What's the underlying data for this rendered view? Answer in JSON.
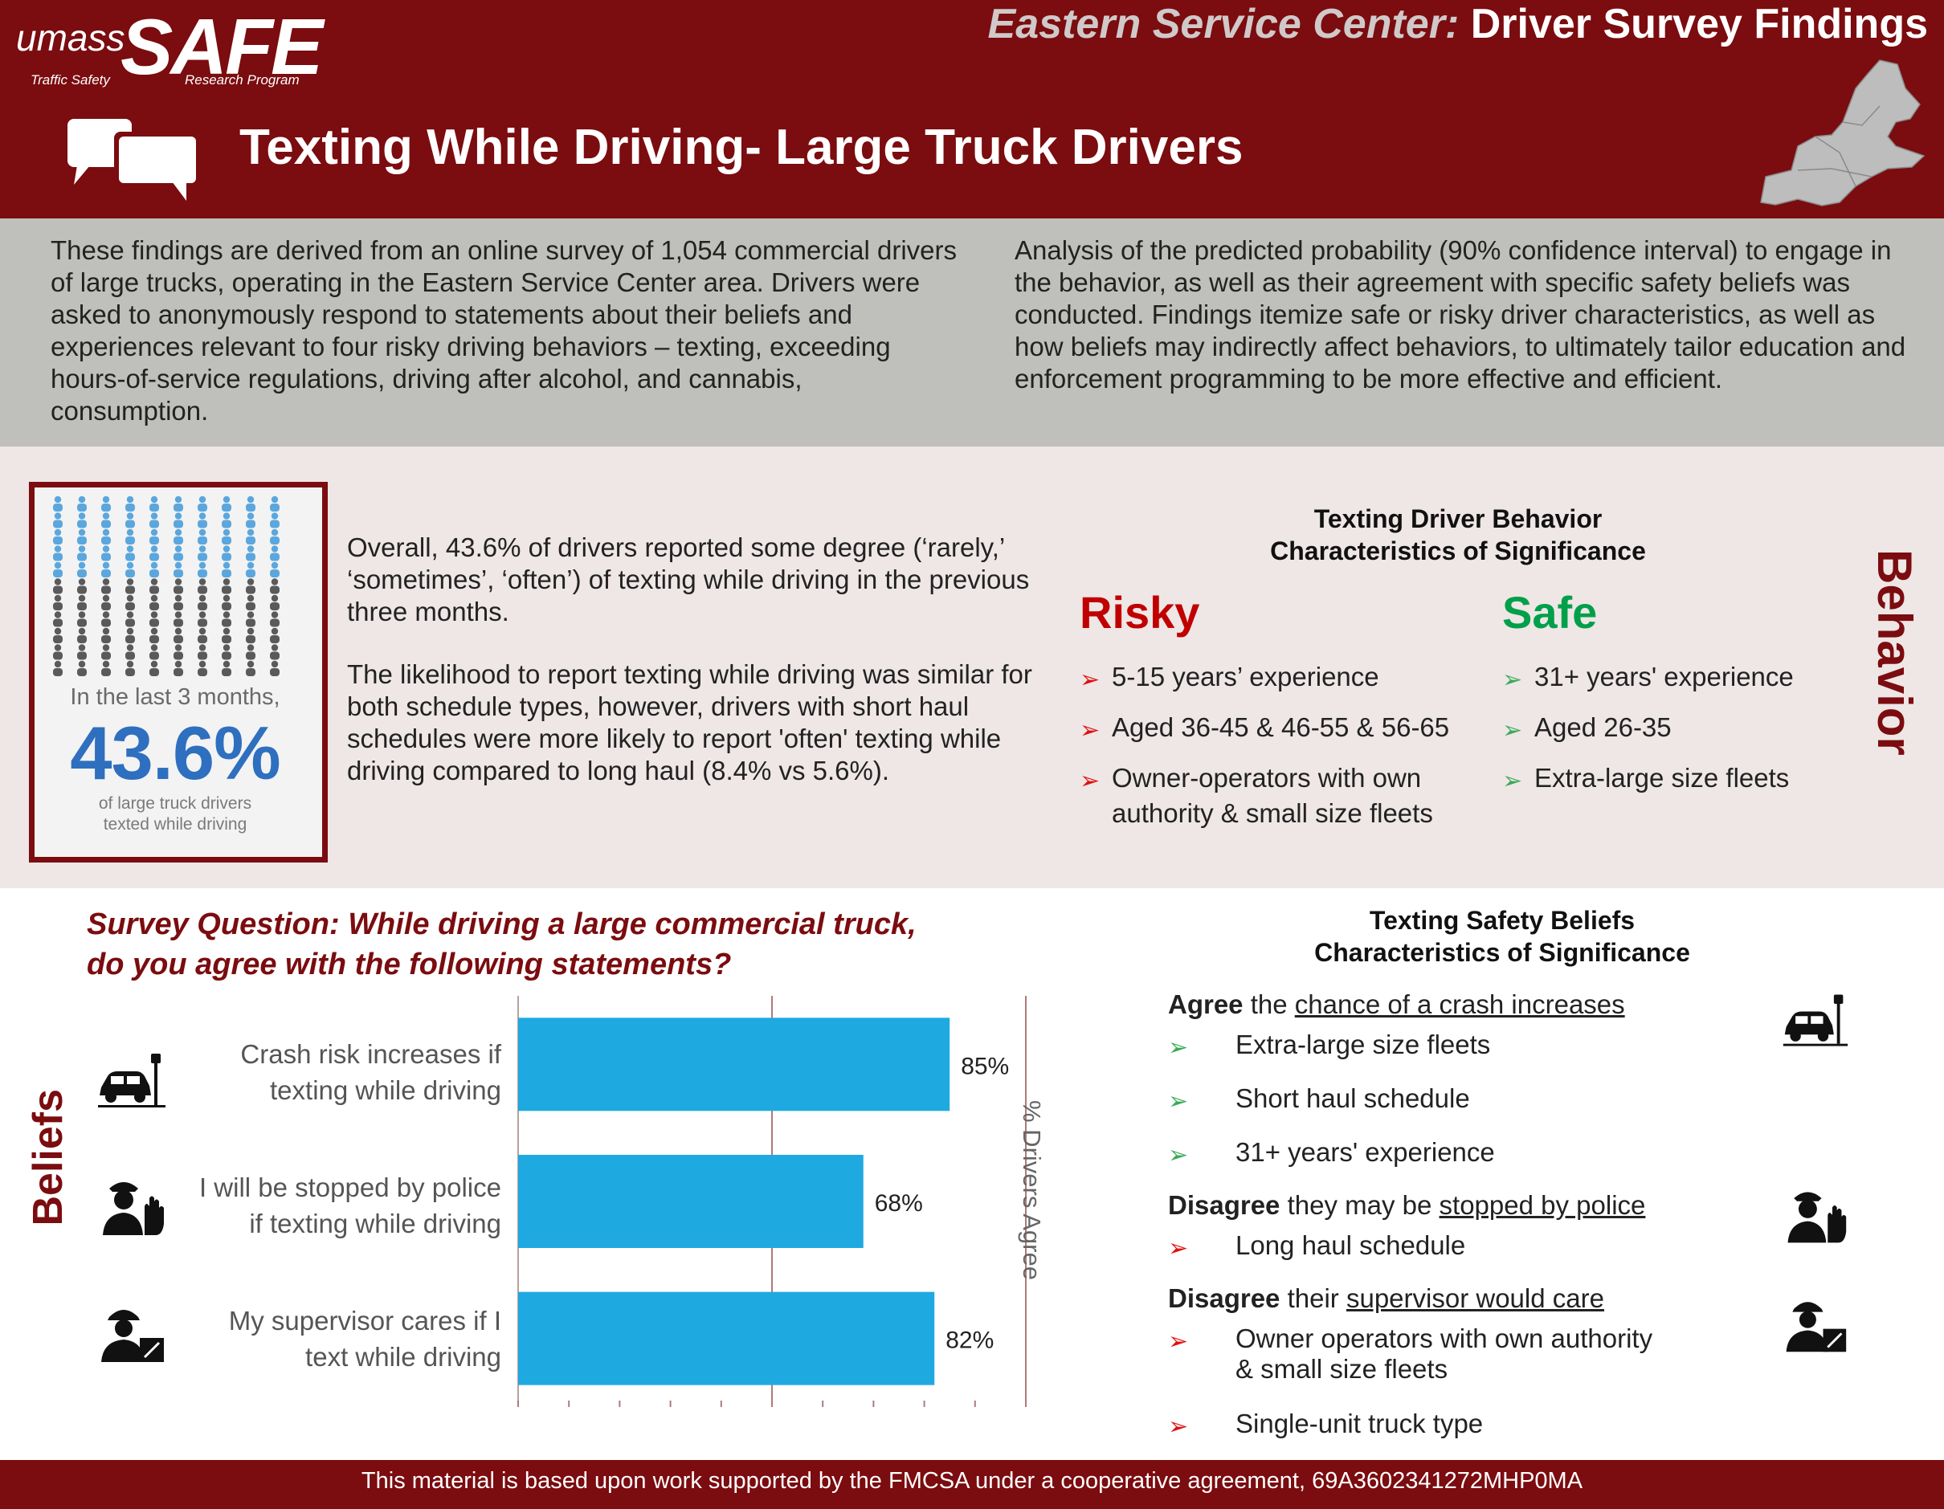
{
  "header": {
    "logo_umass": "umass",
    "logo_safe": "SAFE",
    "logo_sub_left": "Traffic Safety",
    "logo_sub_right": "Research Program",
    "center_prefix": "Eastern Service Center:",
    "center_suffix": " Driver Survey Findings",
    "title": "Texting While Driving- Large Truck Drivers",
    "brand_color": "#7b0c0f"
  },
  "intro": {
    "left": "These findings are derived from an online survey of 1,054 commercial drivers of large trucks, operating in the Eastern Service Center area. Drivers were asked to anonymously respond to statements about their beliefs and experiences relevant to four risky driving behaviors – texting, exceeding hours-of-service regulations, driving after alcohol, and cannabis, consumption.",
    "right": "Analysis of the predicted probability (90% confidence interval) to engage in the behavior, as well as their agreement with specific safety beliefs was conducted. Findings itemize safe or risky driver characteristics, as well as how beliefs may indirectly affect behaviors, to ultimately tailor education and enforcement programming to be more effective and efficient."
  },
  "stat": {
    "label_top": "In the last 3 months,",
    "value": "43.6%",
    "label_bottom_1": "of large truck drivers",
    "label_bottom_2": "texted while driving",
    "highlight_color": "#5ba7dd",
    "base_color": "#5a5a5a"
  },
  "behavior": {
    "para1": "Overall, 43.6% of drivers reported some degree (‘rarely,’ ‘sometimes’, ‘often’) of texting while driving in the previous three months.",
    "para2": "The likelihood to report texting while driving was similar for both schedule types, however, drivers with short haul schedules were more likely to report 'often' texting while driving compared to long haul (8.4% vs 5.6%).",
    "title_1": "Texting Driver Behavior",
    "title_2": "Characteristics of Significance",
    "risky_head": "Risky",
    "safe_head": "Safe",
    "risky": [
      "5-15 years’ experience",
      "Aged 36-45 & 46-55 & 56-65",
      "Owner-operators with own",
      "authority & small size fleets"
    ],
    "safe": [
      "31+ years' experience",
      "Aged 26-35",
      "Extra-large size fleets"
    ],
    "side_label": "Behavior"
  },
  "survey": {
    "question_1": "Survey Question: While driving a large commercial truck,",
    "question_2": "do you agree with the following statements?",
    "side_label": "Beliefs",
    "axis_title": "% Drivers Agree",
    "questions": [
      {
        "line1": "Crash risk increases if",
        "line2": "texting while driving",
        "value_label": "85%"
      },
      {
        "line1": "I will be stopped by police",
        "line2": "if texting while driving",
        "value_label": "68%"
      },
      {
        "line1": "My supervisor cares if I",
        "line2": "text while driving",
        "value_label": "82%"
      }
    ]
  },
  "chart_data": {
    "type": "bar",
    "orientation": "horizontal",
    "categories": [
      "Crash risk increases if texting while driving",
      "I will be stopped by police if texting while driving",
      "My supervisor cares if I text while driving"
    ],
    "values": [
      85,
      68,
      82
    ],
    "xlabel": "% Drivers Agree",
    "xlim": [
      0,
      100
    ],
    "bar_color": "#1fa9e1"
  },
  "beliefs": {
    "title_1": "Texting Safety Beliefs",
    "title_2": "Characteristics of Significance",
    "g1_bold": "Agree",
    "g1_mid": " the ",
    "g1_u": "chance of a crash increases",
    "g1_items": [
      "Extra-large size fleets",
      "Short haul schedule",
      "31+ years' experience"
    ],
    "g2_bold": "Disagree",
    "g2_mid": " they may be ",
    "g2_u": "stopped by police",
    "g2_items": [
      "Long haul schedule"
    ],
    "g3_bold": "Disagree",
    "g3_mid": " their ",
    "g3_u": "supervisor would care",
    "g3_items": [
      "Owner operators with own authority",
      "& small size fleets",
      "Single-unit truck type"
    ]
  },
  "footer": {
    "text": "This material is based upon work supported by the FMCSA under a cooperative agreement, 69A3602341272MHP0MA"
  }
}
